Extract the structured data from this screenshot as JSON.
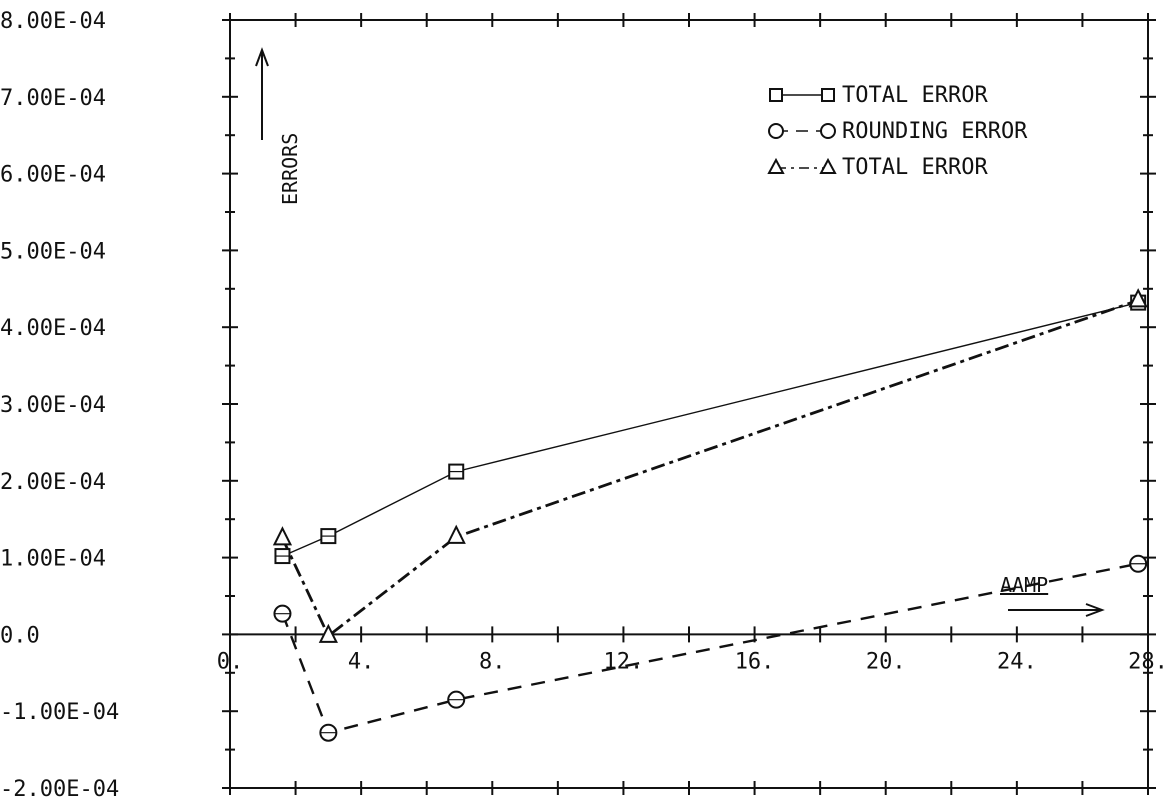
{
  "chart_data": {
    "type": "line",
    "x_tick_labels": [
      "0.",
      "4.",
      "8.",
      "12.",
      "16.",
      "20.",
      "24.",
      "28."
    ],
    "y_tick_labels": [
      "8.00E-04",
      "7.00E-04",
      "6.00E-04",
      "5.00E-04",
      "4.00E-04",
      "3.00E-04",
      "2.00E-04",
      "1.00E-04",
      "0.0",
      "-1.00E-04",
      "-2.00E-04"
    ],
    "xlim": [
      0,
      28
    ],
    "ylim": [
      -0.0002,
      0.0008
    ],
    "ylabel": "ERRORS",
    "xlabel": "AAMP",
    "legend_position": "top-right",
    "grid": false,
    "series": [
      {
        "name": "TOTAL ERROR",
        "marker": "square",
        "line": "solid",
        "x": [
          1.6,
          3.0,
          6.9,
          27.7
        ],
        "y": [
          0.000102,
          0.000128,
          0.000212,
          0.000432
        ]
      },
      {
        "name": "ROUNDING ERROR",
        "marker": "circle",
        "line": "dashed",
        "x": [
          1.6,
          3.0,
          6.9,
          27.7
        ],
        "y": [
          2.7e-05,
          -0.000128,
          -8.5e-05,
          9.2e-05
        ]
      },
      {
        "name": "TOTAL ERROR",
        "marker": "triangle",
        "line": "dash-dot",
        "x": [
          1.6,
          3.0,
          6.9,
          27.7
        ],
        "y": [
          0.000125,
          -2e-06,
          0.000127,
          0.000435
        ]
      }
    ]
  }
}
